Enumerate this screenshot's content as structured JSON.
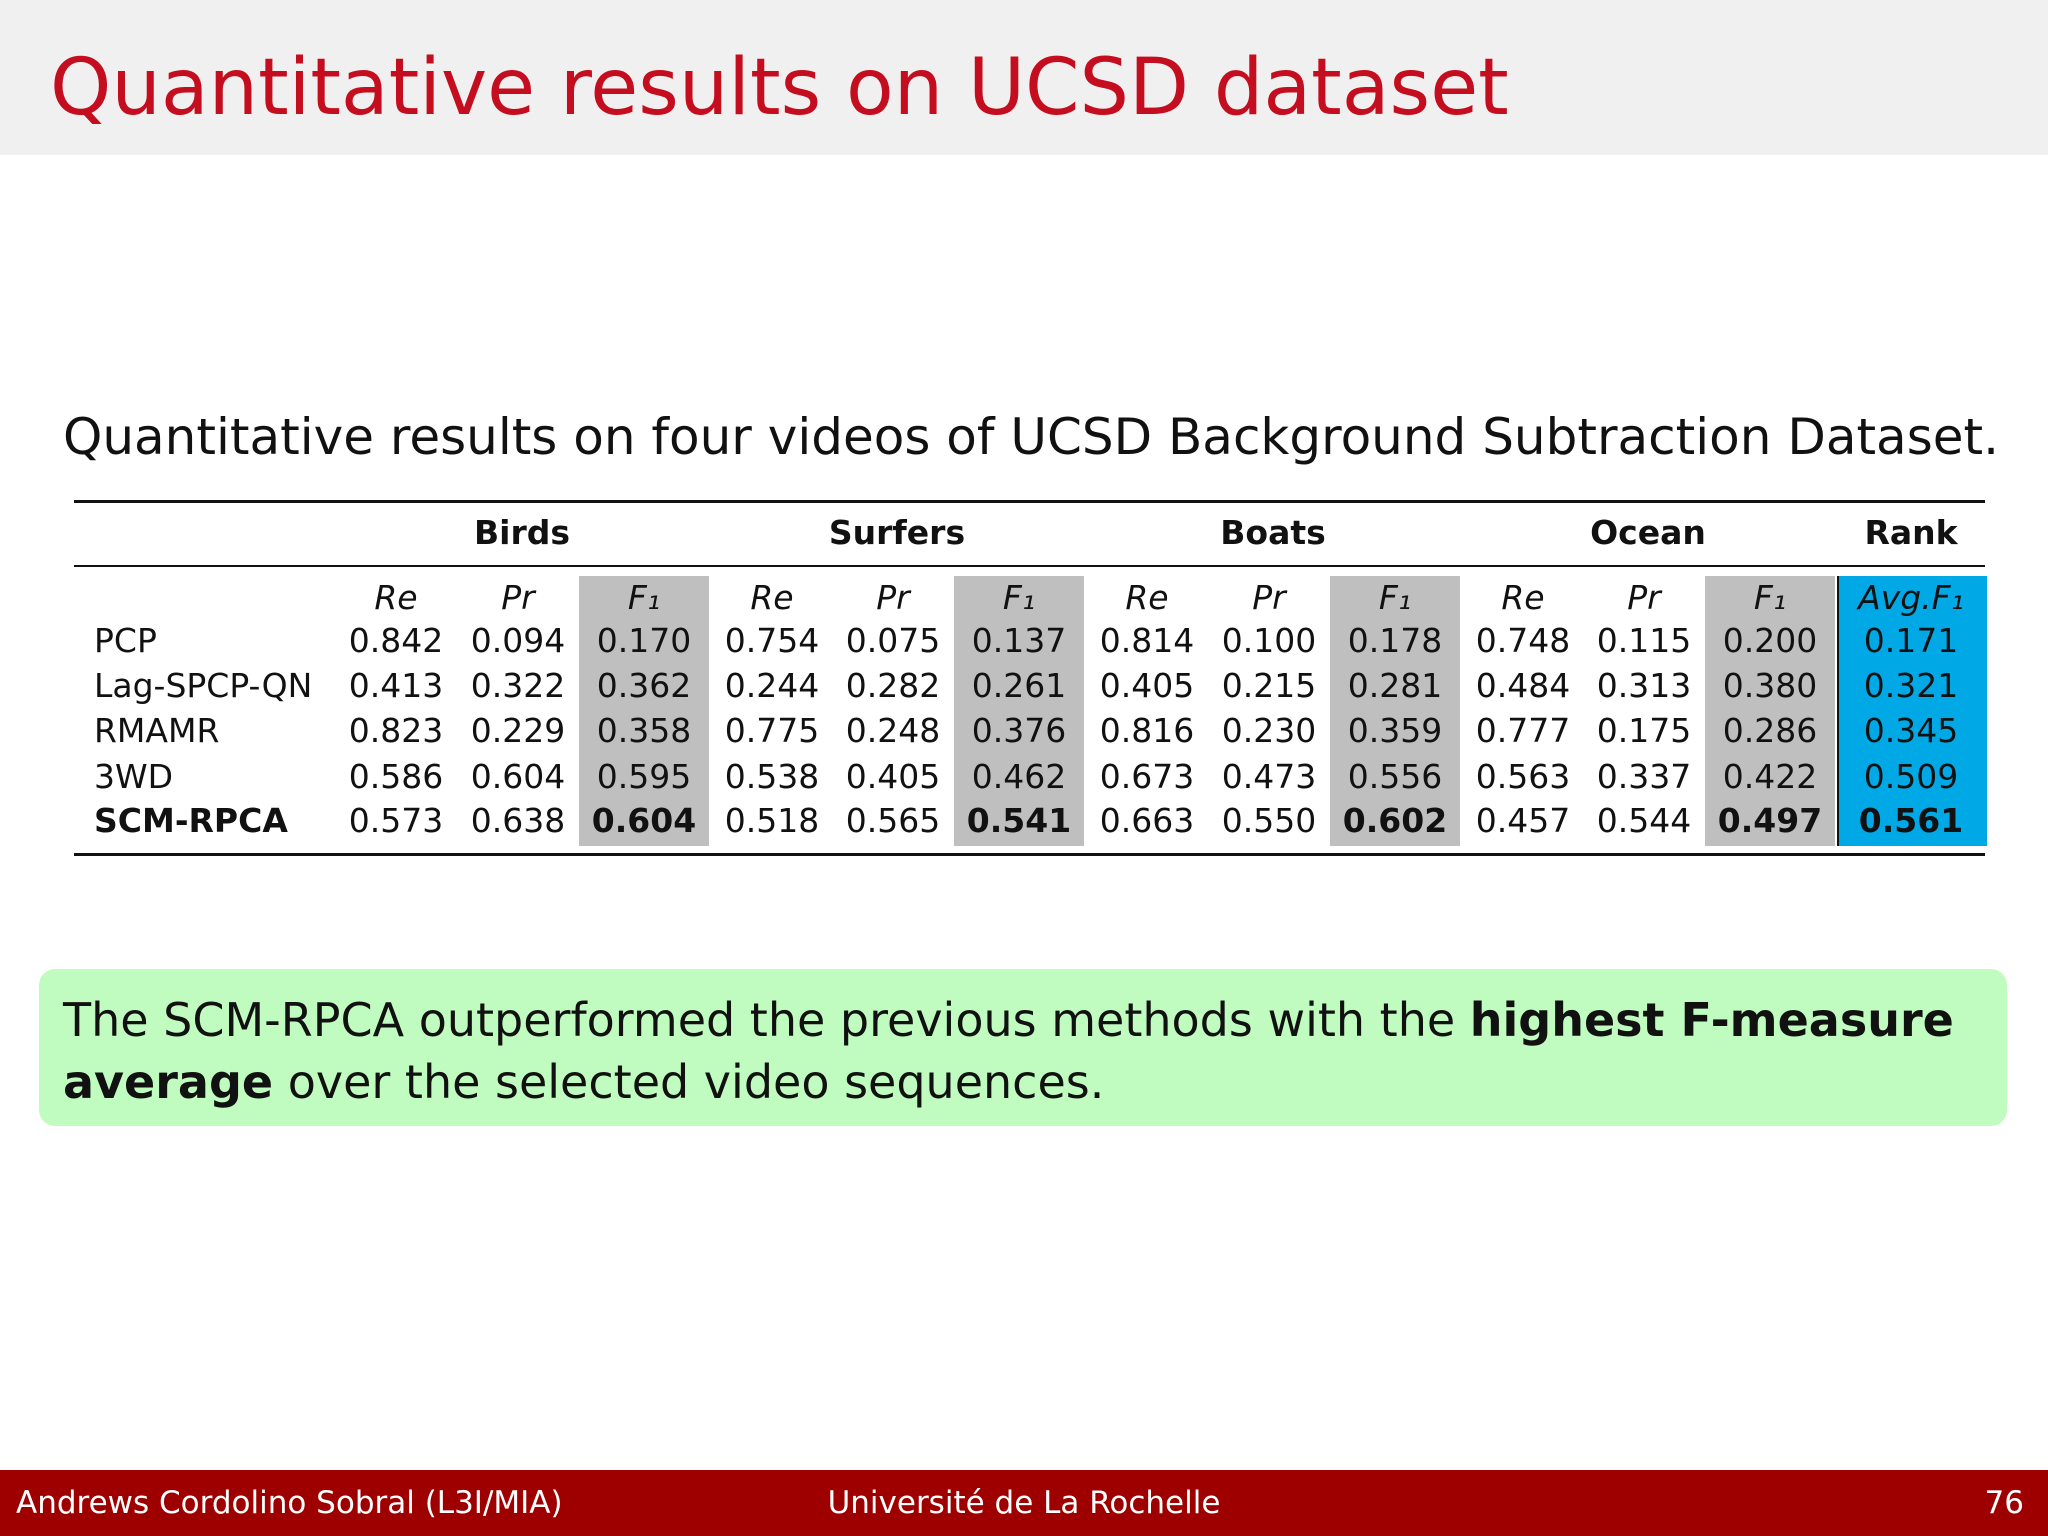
{
  "header": {
    "title": "Quantitative results on UCSD dataset"
  },
  "caption": "Quantitative results on four videos of UCSD Background Subtraction Dataset.",
  "table": {
    "groups": [
      "Birds",
      "Surfers",
      "Boats",
      "Ocean",
      "Rank"
    ],
    "subheaders": [
      "Re",
      "Pr",
      "F₁",
      "Re",
      "Pr",
      "F₁",
      "Re",
      "Pr",
      "F₁",
      "Re",
      "Pr",
      "F₁",
      "Avg.F₁"
    ],
    "rows": [
      [
        "PCP",
        "0.842",
        "0.094",
        "0.170",
        "0.754",
        "0.075",
        "0.137",
        "0.814",
        "0.100",
        "0.178",
        "0.748",
        "0.115",
        "0.200",
        "0.171"
      ],
      [
        "Lag-SPCP-QN",
        "0.413",
        "0.322",
        "0.362",
        "0.244",
        "0.282",
        "0.261",
        "0.405",
        "0.215",
        "0.281",
        "0.484",
        "0.313",
        "0.380",
        "0.321"
      ],
      [
        "RMAMR",
        "0.823",
        "0.229",
        "0.358",
        "0.775",
        "0.248",
        "0.376",
        "0.816",
        "0.230",
        "0.359",
        "0.777",
        "0.175",
        "0.286",
        "0.345"
      ],
      [
        "3WD",
        "0.586",
        "0.604",
        "0.595",
        "0.538",
        "0.405",
        "0.462",
        "0.673",
        "0.473",
        "0.556",
        "0.563",
        "0.337",
        "0.422",
        "0.509"
      ],
      [
        "SCM-RPCA",
        "0.573",
        "0.638",
        "0.604",
        "0.518",
        "0.565",
        "0.541",
        "0.663",
        "0.550",
        "0.602",
        "0.457",
        "0.544",
        "0.497",
        "0.561"
      ]
    ]
  },
  "callout": [
    {
      "text": "The SCM-RPCA outperformed the previous methods with the "
    },
    {
      "text": "highest F-measure average",
      "bold": true
    },
    {
      "text": " over the selected video sequences."
    }
  ],
  "footer": {
    "author": "Andrews Cordolino Sobral (L3I/MIA)",
    "institution": "Université de La Rochelle",
    "page": "76"
  }
}
